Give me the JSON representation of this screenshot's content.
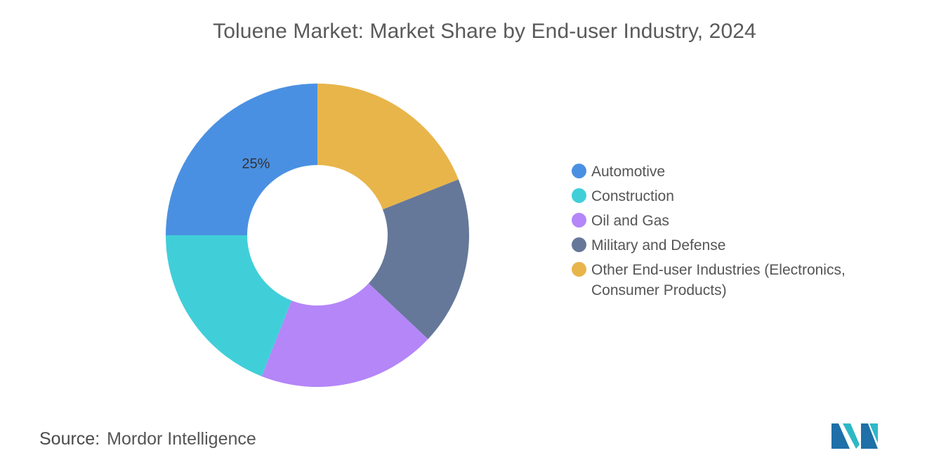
{
  "chart_data": {
    "type": "pie",
    "style": "donut",
    "title": "Toluene Market: Market Share by End-user Industry, 2024",
    "slices": [
      {
        "label": "Other End-user Industries (Electronics, Consumer Products)",
        "value": 19,
        "color": "#E8B54A",
        "data_label": ""
      },
      {
        "label": "Military and Defense",
        "value": 18,
        "color": "#657899",
        "data_label": ""
      },
      {
        "label": "Oil and Gas",
        "value": 19,
        "color": "#B486F8",
        "data_label": ""
      },
      {
        "label": "Construction",
        "value": 19,
        "color": "#40CFD9",
        "data_label": ""
      },
      {
        "label": "Automotive",
        "value": 25,
        "color": "#4A90E2",
        "data_label": "25%"
      }
    ],
    "legend": {
      "position": "right",
      "items": [
        {
          "label": "Automotive",
          "color": "#4A90E2"
        },
        {
          "label": "Construction",
          "color": "#40CFD9"
        },
        {
          "label": "Oil and Gas",
          "color": "#B486F8"
        },
        {
          "label": "Military and Defense",
          "color": "#657899"
        },
        {
          "label": "Other End-user Industries (Electronics, Consumer Products)",
          "color": "#E8B54A"
        }
      ]
    }
  },
  "source": {
    "key": "Source:",
    "value": "Mordor Intelligence"
  },
  "logo": {
    "icon": "mordor-intelligence-logo-icon",
    "colors": [
      "#1F4E79",
      "#2EB8C6"
    ]
  }
}
